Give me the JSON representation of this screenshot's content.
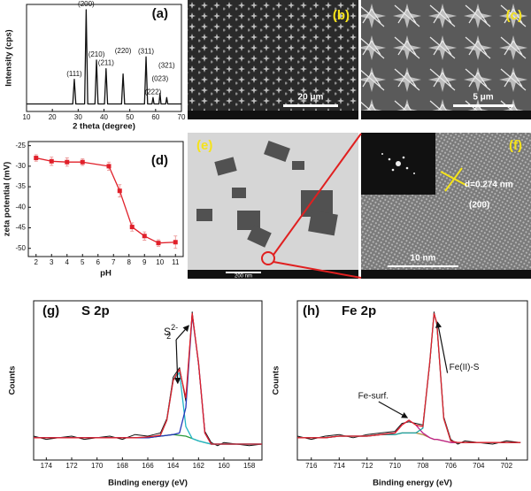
{
  "chart_data": [
    {
      "type": "line",
      "panel_label": "(a)",
      "xlabel": "2 theta (degree)",
      "ylabel": "Intensity (cps)",
      "x": [
        10,
        27.9,
        28.5,
        29.1,
        32.5,
        33.1,
        33.7,
        36.5,
        37.1,
        37.7,
        40.2,
        40.8,
        41.4,
        46.8,
        47.4,
        48.0,
        55.7,
        56.3,
        56.9,
        58.6,
        59.0,
        59.4,
        61.3,
        61.7,
        62.1,
        63.9,
        64.3,
        64.7,
        70
      ],
      "series": [
        {
          "color": "#111111",
          "values": [
            7,
            7,
            30,
            7,
            7,
            95,
            7,
            7,
            48,
            7,
            7,
            40,
            7,
            7,
            35,
            7,
            7,
            51,
            7,
            7,
            13,
            7,
            7,
            17,
            7,
            7,
            13,
            7,
            7
          ]
        }
      ],
      "xlim": [
        10,
        70
      ],
      "xticks": [
        10,
        20,
        30,
        40,
        50,
        60,
        70
      ],
      "ylim": [
        0,
        100
      ],
      "annotations": [
        {
          "text": "(111)",
          "x": 28.5
        },
        {
          "text": "(200)",
          "x": 33.1
        },
        {
          "text": "(210)",
          "x": 37.1
        },
        {
          "text": "(211)",
          "x": 40.8
        },
        {
          "text": "(220)",
          "x": 47.4
        },
        {
          "text": "(311)",
          "x": 56.3
        },
        {
          "text": "(222)",
          "x": 59.0
        },
        {
          "text": "(023)",
          "x": 61.7
        },
        {
          "text": "(321)",
          "x": 64.3
        }
      ]
    },
    {
      "type": "line",
      "panel_label": "(d)",
      "xlabel": "pH",
      "ylabel": "zeta potential (mV)",
      "markers": "square",
      "x": [
        2,
        3,
        4,
        5,
        6.7,
        7.4,
        8.2,
        9,
        9.9,
        11
      ],
      "series": [
        {
          "color": "#e0202a",
          "values": [
            -28,
            -28.8,
            -29,
            -29,
            -30,
            -36,
            -44.8,
            -47,
            -48.7,
            -48.5
          ],
          "errors": [
            0.8,
            1,
            1,
            0.8,
            1,
            1.5,
            1,
            1,
            0.8,
            1.5
          ]
        }
      ],
      "xlim": [
        1.5,
        11.5
      ],
      "xticks": [
        2,
        3,
        4,
        5,
        6,
        7,
        8,
        9,
        10,
        11
      ],
      "ylim": [
        -52,
        -24
      ],
      "yticks": [
        -25,
        -30,
        -35,
        -40,
        -45,
        -50
      ]
    },
    {
      "type": "line",
      "panel_label": "(g)",
      "title": "S 2p",
      "xlabel": "Binding energy (eV)",
      "ylabel": "Counts",
      "x": [
        175,
        174,
        173,
        172,
        171,
        170,
        169,
        168,
        167,
        166,
        165.5,
        165,
        164.5,
        164,
        163.5,
        163,
        162.5,
        162,
        161.5,
        161,
        160.5,
        160,
        159,
        158,
        157
      ],
      "series": [
        {
          "color": "#111111",
          "values": [
            15,
            13,
            14,
            15,
            13,
            14,
            15,
            13,
            16,
            15,
            16,
            17,
            26,
            52,
            58,
            37,
            93,
            60,
            18,
            11,
            9,
            11,
            10,
            9,
            10
          ]
        },
        {
          "color": "#2a9a3a",
          "values": [
            14,
            14,
            14,
            14,
            14,
            14,
            14,
            14,
            14,
            14,
            14.5,
            15,
            15.5,
            16,
            15.5,
            15,
            13.5,
            12,
            11,
            10,
            10,
            10,
            10,
            10,
            10
          ]
        },
        {
          "color": "#22b5c8",
          "values": [
            14,
            14,
            14,
            14,
            14,
            14,
            14,
            14,
            14,
            14,
            14.5,
            15.6,
            25,
            50,
            55,
            21,
            13.5,
            12,
            11,
            10,
            10,
            10,
            10,
            10,
            10
          ]
        },
        {
          "color": "#2336b8",
          "values": [
            14,
            14,
            14,
            14,
            14,
            14,
            14,
            14,
            14,
            14,
            14.5,
            15,
            15.5,
            16,
            17,
            33,
            91,
            61,
            17,
            10,
            10,
            10,
            10,
            10,
            10
          ]
        },
        {
          "color": "#e0202a",
          "values": [
            14,
            14,
            14,
            14,
            14,
            14,
            14,
            14,
            14,
            14.5,
            15,
            15.6,
            25,
            50,
            57,
            39,
            92,
            61,
            17,
            10,
            10,
            10,
            10,
            10,
            10
          ]
        }
      ],
      "xlim": [
        175,
        157
      ],
      "xticks": [
        174,
        172,
        170,
        168,
        166,
        164,
        162,
        160,
        158
      ],
      "ylim": [
        0,
        100
      ],
      "species_label": {
        "base": "S",
        "sub": "2",
        "sup": "2-"
      }
    },
    {
      "type": "line",
      "panel_label": "(h)",
      "title": "Fe 2p",
      "xlabel": "Binding energy (eV)",
      "ylabel": "Counts",
      "x": [
        717,
        716,
        715,
        714,
        713,
        712,
        711,
        710,
        709.5,
        709,
        708.5,
        708,
        707.5,
        707.2,
        707,
        706.5,
        706,
        705.5,
        705,
        704,
        703,
        702,
        701
      ],
      "series": [
        {
          "color": "#111111",
          "values": [
            15,
            13,
            15,
            16,
            14,
            16,
            17,
            18,
            23,
            24,
            23,
            22,
            61,
            93,
            85,
            27,
            13,
            10,
            12,
            11,
            10,
            12,
            11
          ]
        },
        {
          "color": "#b08a3a",
          "values": [
            14,
            14,
            14,
            15,
            15,
            15,
            16,
            16,
            17,
            17,
            17,
            16,
            14,
            13,
            13,
            12,
            11,
            11,
            11,
            11,
            11,
            11,
            11
          ]
        },
        {
          "color": "#c0208a",
          "values": [
            14,
            14,
            14,
            15,
            15,
            15,
            16,
            17,
            22,
            25,
            22,
            17,
            14,
            13,
            13,
            12,
            11,
            11,
            11,
            11,
            11,
            11,
            11
          ]
        },
        {
          "color": "#1aa0a0",
          "values": [
            14,
            14,
            14,
            15,
            15,
            15,
            16,
            16,
            17,
            17,
            17,
            20,
            62,
            92,
            86,
            26,
            12,
            11,
            11,
            11,
            11,
            11,
            11
          ]
        },
        {
          "color": "#e0202a",
          "values": [
            14,
            14,
            14,
            15,
            15,
            15,
            16,
            17,
            22,
            25,
            22,
            21,
            62,
            92,
            86,
            26,
            12,
            11,
            11,
            11,
            11,
            11,
            11
          ]
        }
      ],
      "xlim": [
        717,
        700.5
      ],
      "xticks": [
        716,
        714,
        712,
        710,
        708,
        706,
        704,
        702
      ],
      "ylim": [
        0,
        100
      ],
      "annotations": [
        "Fe-surf.",
        "Fe(II)-S"
      ]
    }
  ],
  "micrographs": [
    {
      "label": "(b)",
      "scale_bar": "20 μm"
    },
    {
      "label": "(c)",
      "scale_bar": "5 μm"
    },
    {
      "label": "(e)",
      "scale_bar": "200 nm"
    },
    {
      "label": "(f)",
      "scale_bar": "10 nm",
      "d_spacing": "d=0.274 nm",
      "plane": "(200)"
    }
  ]
}
